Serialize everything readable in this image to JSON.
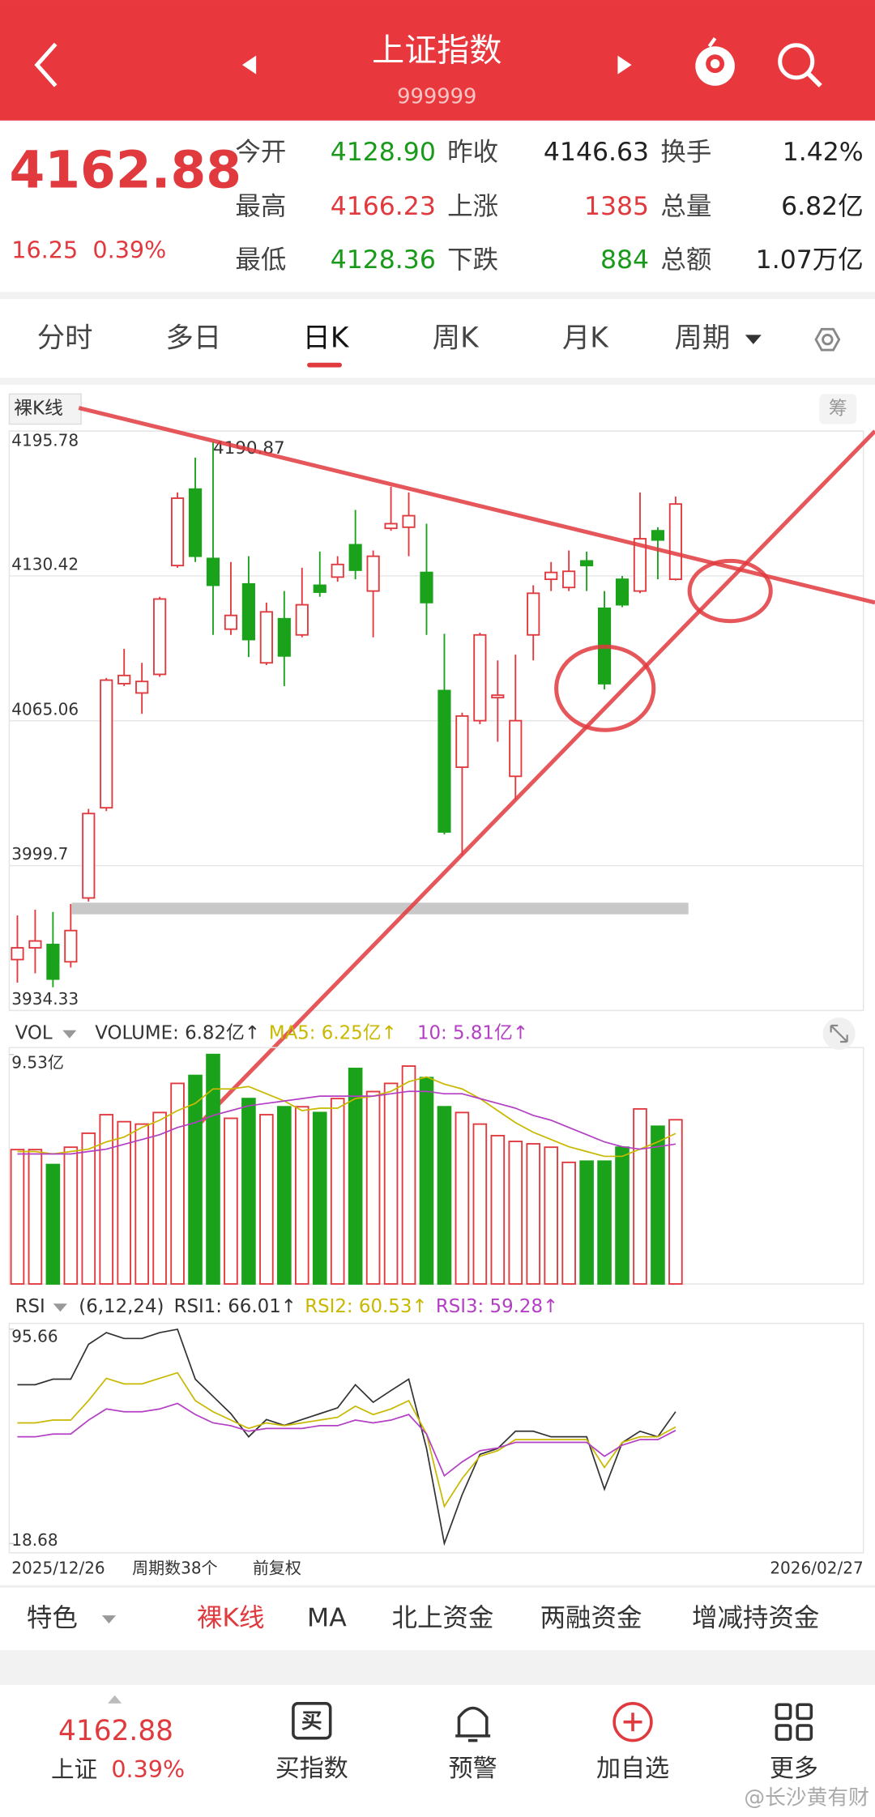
{
  "header": {
    "title": "上证指数",
    "code": "999999"
  },
  "quote": {
    "price": "4162.88",
    "change": "16.25",
    "pct": "0.39%",
    "fields": [
      {
        "label": "今开",
        "value": "4128.90",
        "color": "#1a9a1a"
      },
      {
        "label": "昨收",
        "value": "4146.63",
        "color": "#222"
      },
      {
        "label": "换手",
        "value": "1.42%",
        "color": "#222"
      },
      {
        "label": "最高",
        "value": "4166.23",
        "color": "#e0393e"
      },
      {
        "label": "上涨",
        "value": "1385",
        "color": "#e0393e"
      },
      {
        "label": "总量",
        "value": "6.82亿",
        "color": "#222"
      },
      {
        "label": "最低",
        "value": "4128.36",
        "color": "#1a9a1a"
      },
      {
        "label": "下跌",
        "value": "884",
        "color": "#1a9a1a"
      },
      {
        "label": "总额",
        "value": "1.07万亿",
        "color": "#222"
      }
    ]
  },
  "tabs": [
    "分时",
    "多日",
    "日K",
    "周K",
    "月K",
    "周期"
  ],
  "chart": {
    "indicator": "裸K线",
    "chip_button": "筹",
    "price": {
      "type": "candlestick",
      "ylim": [
        3934.33,
        4195.78
      ],
      "yticks": [
        3934.33,
        3999.7,
        4065.06,
        4130.42,
        4195.78
      ],
      "high_label": "4190.87",
      "up_color": "#e0393e",
      "down_color": "#1aa31a",
      "open": [
        3957.3,
        3962.6,
        3964.1,
        3956.3,
        3985.1,
        4025.8,
        4081.8,
        4077.6,
        4086.0,
        4135.1,
        4169.6,
        4138.3,
        4106.4,
        4126.8,
        4091.2,
        4111.1,
        4103.8,
        4126.2,
        4129.9,
        4144.5,
        4123.6,
        4151.9,
        4152.4,
        4132.0,
        4078.7,
        4044.1,
        4065.1,
        4075.5,
        4040.0,
        4103.8,
        4128.9,
        4125.2,
        4137.2,
        4115.8,
        4128.9,
        4123.6,
        4150.8,
        4128.9
      ],
      "close": [
        3962.6,
        3965.7,
        3948.5,
        3970.4,
        4023.2,
        4083.4,
        4085.5,
        4082.8,
        4120.0,
        4165.5,
        4139.3,
        4126.2,
        4112.6,
        4101.7,
        4114.2,
        4094.3,
        4117.4,
        4123.1,
        4135.6,
        4133.0,
        4139.3,
        4154.0,
        4157.6,
        4118.4,
        4014.9,
        4067.2,
        4103.8,
        4076.6,
        4065.1,
        4122.6,
        4132.0,
        4132.5,
        4135.1,
        4081.8,
        4117.4,
        4147.2,
        4146.63,
        4162.88
      ],
      "high": [
        3977.2,
        3979.8,
        3978.8,
        3982.4,
        4025.3,
        4084.4,
        4097.5,
        4091.2,
        4121.0,
        4168.1,
        4183.8,
        4190.87,
        4136.7,
        4139.3,
        4118.4,
        4123.6,
        4134.1,
        4141.4,
        4139.3,
        4160.2,
        4141.9,
        4170.7,
        4168.1,
        4154.0,
        4104.3,
        4068.7,
        4104.8,
        4092.3,
        4094.9,
        4126.2,
        4136.7,
        4141.9,
        4141.4,
        4123.6,
        4130.4,
        4168.1,
        4152.4,
        4166.23
      ],
      "low": [
        3946.9,
        3951.1,
        3944.8,
        3953.7,
        3983.5,
        4024.3,
        4080.7,
        4068.2,
        4084.9,
        4134.1,
        4136.7,
        4103.8,
        4103.8,
        4093.8,
        4090.2,
        4080.7,
        4102.7,
        4121.0,
        4127.8,
        4128.9,
        4102.7,
        4150.8,
        4139.3,
        4103.8,
        4013.8,
        4004.4,
        4063.5,
        4055.6,
        4029.5,
        4092.3,
        4123.6,
        4123.6,
        4123.6,
        4079.2,
        4116.3,
        4122.6,
        4128.9,
        4128.36
      ]
    },
    "volume": {
      "label": "VOL",
      "ylim": [
        0,
        9.53
      ],
      "yticks": [
        {
          "value": 9.53,
          "label": "9.53亿"
        }
      ],
      "legend": [
        {
          "text": "VOLUME: 6.82亿↑",
          "color": "#333"
        },
        {
          "text": "MA5: 6.25亿↑",
          "color": "#c9b800"
        },
        {
          "text": "10: 5.81亿↑",
          "color": "#b33fc4"
        }
      ],
      "values": [
        5.58,
        5.58,
        4.96,
        5.68,
        6.26,
        7.03,
        6.74,
        6.64,
        7.12,
        8.33,
        8.66,
        9.53,
        6.88,
        7.7,
        7.03,
        7.36,
        7.36,
        7.12,
        7.7,
        8.95,
        7.99,
        8.33,
        9.05,
        8.57,
        7.36,
        7.12,
        6.64,
        6.16,
        5.92,
        5.82,
        5.68,
        5.05,
        5.1,
        5.1,
        5.68,
        7.27,
        6.55,
        6.82
      ],
      "ma5": [
        5.5,
        5.5,
        5.4,
        5.5,
        5.6,
        5.9,
        6.1,
        6.5,
        6.8,
        7.2,
        7.5,
        8.1,
        8.1,
        8.2,
        7.9,
        7.6,
        7.2,
        7.3,
        7.3,
        7.7,
        7.8,
        8.0,
        8.4,
        8.6,
        8.3,
        8.1,
        7.7,
        7.2,
        6.7,
        6.3,
        6.0,
        5.7,
        5.5,
        5.3,
        5.3,
        5.6,
        5.9,
        6.25
      ],
      "ma10": [
        5.4,
        5.4,
        5.4,
        5.4,
        5.5,
        5.6,
        5.8,
        6.0,
        6.2,
        6.5,
        6.7,
        7.0,
        7.2,
        7.4,
        7.5,
        7.6,
        7.7,
        7.8,
        7.8,
        7.8,
        7.8,
        7.9,
        8.0,
        8.0,
        7.9,
        7.9,
        7.7,
        7.5,
        7.3,
        7.0,
        6.8,
        6.5,
        6.2,
        5.9,
        5.7,
        5.6,
        5.7,
        5.81
      ]
    },
    "rsi": {
      "label": "RSI",
      "params": "(6,12,24)",
      "ylim": [
        18.68,
        95.66
      ],
      "yticks": [
        18.68,
        95.66
      ],
      "series": [
        {
          "name": "RSI1: 66.01↑",
          "color": "#333",
          "values": [
            75.7,
            75.7,
            77.7,
            77.7,
            90.2,
            94.4,
            92.3,
            92.3,
            94.4,
            95.6,
            77.7,
            71.5,
            65.3,
            57.0,
            63.2,
            61.1,
            63.2,
            65.3,
            67.4,
            75.7,
            69.4,
            73.6,
            77.7,
            52.8,
            18.7,
            36.2,
            50.7,
            52.8,
            59.0,
            59.0,
            57.0,
            57.0,
            57.0,
            38.2,
            54.9,
            59.0,
            57.0,
            66.01
          ]
        },
        {
          "name": "RSI2: 60.53↑",
          "color": "#c9b800",
          "values": [
            62,
            62,
            63,
            63,
            70,
            78,
            76,
            76,
            78,
            80,
            70,
            66,
            63,
            60,
            62,
            61,
            62,
            63,
            64,
            68,
            65,
            67,
            70,
            58,
            32,
            42,
            50,
            52,
            56,
            56,
            56,
            56,
            56,
            46,
            55,
            57,
            57,
            60.53
          ]
        },
        {
          "name": "RSI3: 59.28↑",
          "color": "#b33fc4",
          "values": [
            57,
            57,
            58,
            58,
            63,
            67,
            66,
            66,
            67,
            69,
            65,
            62,
            61,
            59,
            60,
            60,
            60,
            61,
            61,
            63,
            62,
            63,
            65,
            58,
            43,
            48,
            52,
            53,
            55,
            55,
            55,
            55,
            55,
            50,
            54,
            56,
            56,
            59.28
          ]
        }
      ]
    },
    "date_start": "2025/12/26",
    "period_count": "周期数38个",
    "adjust": "前复权",
    "date_end": "2026/02/27"
  },
  "bottom_tabs": [
    "特色",
    "裸K线",
    "MA",
    "北上资金",
    "两融资金",
    "增减持资金"
  ],
  "footer": {
    "price": "4162.88",
    "name": "上证",
    "pct": "0.39%",
    "buy_icon": "买",
    "buttons": [
      "买指数",
      "预警",
      "加自选",
      "更多"
    ],
    "watermark": "@长沙黄有财"
  }
}
